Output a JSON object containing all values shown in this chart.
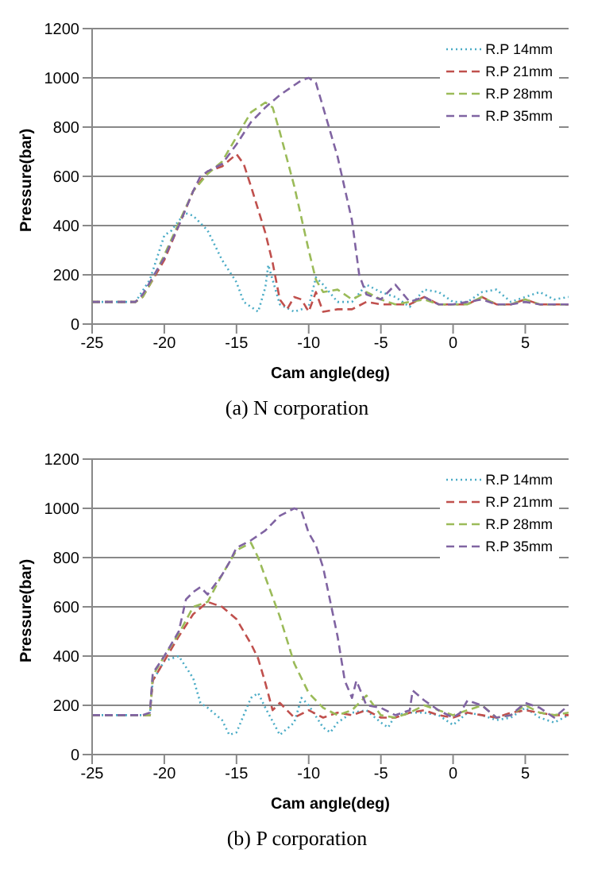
{
  "chart_data": [
    {
      "type": "line",
      "xlabel": "Cam angle(deg)",
      "ylabel": "Pressure(bar)",
      "xlim": [
        -25,
        8
      ],
      "xticks": [
        -25,
        -20,
        -15,
        -10,
        -5,
        0,
        5
      ],
      "ylim": [
        0,
        1200
      ],
      "yticks": [
        0,
        200,
        400,
        600,
        800,
        1000,
        1200
      ],
      "grid": "y",
      "legend": "top right",
      "marker": "none",
      "annotations": [
        "(a)  N corporation"
      ],
      "series": [
        {
          "name": "R.P 14mm",
          "color": "#4bacc6",
          "line_style": "dotted",
          "x": [
            -25,
            -22,
            -21,
            -20,
            -19.5,
            -19,
            -18.5,
            -18,
            -17,
            -16,
            -15,
            -14.5,
            -14,
            -13.5,
            -13,
            -12.8,
            -12.5,
            -12,
            -11,
            -10,
            -9.5,
            -9,
            -8,
            -7,
            -6,
            -5,
            -4,
            -3,
            -2,
            -1,
            0,
            1,
            2,
            3,
            4,
            5,
            6,
            7,
            8
          ],
          "values": [
            90,
            90,
            180,
            360,
            380,
            420,
            450,
            440,
            380,
            260,
            170,
            90,
            70,
            50,
            150,
            240,
            180,
            80,
            50,
            70,
            190,
            160,
            90,
            90,
            160,
            130,
            110,
            70,
            140,
            130,
            90,
            90,
            130,
            140,
            90,
            110,
            130,
            100,
            110
          ]
        },
        {
          "name": "R.P 21mm",
          "color": "#c0504d",
          "line_style": "dashed",
          "x": [
            -25,
            -22,
            -21.5,
            -21,
            -20,
            -19,
            -18,
            -17,
            -16,
            -15,
            -14.5,
            -14,
            -13,
            -12.5,
            -12,
            -11.5,
            -11,
            -10.5,
            -10,
            -9.5,
            -9,
            -8,
            -7,
            -6,
            -5,
            -4,
            -3,
            -2,
            -1,
            0,
            1,
            2,
            3,
            4,
            5,
            6,
            7,
            8
          ],
          "values": [
            90,
            90,
            110,
            160,
            260,
            400,
            540,
            620,
            640,
            690,
            650,
            560,
            370,
            250,
            100,
            60,
            110,
            100,
            50,
            130,
            50,
            60,
            60,
            90,
            80,
            80,
            80,
            110,
            80,
            80,
            80,
            110,
            80,
            80,
            100,
            80,
            80,
            80
          ]
        },
        {
          "name": "R.P 28mm",
          "color": "#9bbb59",
          "line_style": "dashed",
          "x": [
            -25,
            -22,
            -21.5,
            -21,
            -20,
            -19,
            -18,
            -17,
            -16,
            -15,
            -14,
            -13,
            -12.5,
            -12,
            -11,
            -10,
            -9.5,
            -9,
            -8,
            -7,
            -6,
            -5,
            -4,
            -3,
            -2,
            -1,
            0,
            1,
            2,
            3,
            4,
            5,
            6,
            7,
            8
          ],
          "values": [
            90,
            90,
            110,
            160,
            280,
            410,
            540,
            610,
            660,
            760,
            860,
            900,
            880,
            780,
            560,
            300,
            180,
            130,
            140,
            100,
            130,
            100,
            80,
            90,
            100,
            80,
            80,
            80,
            110,
            80,
            80,
            100,
            80,
            80,
            80
          ]
        },
        {
          "name": "R.P 35mm",
          "color": "#8064a2",
          "line_style": "dashed",
          "x": [
            -25,
            -22,
            -21.5,
            -21,
            -20,
            -19,
            -18,
            -17.5,
            -17,
            -16,
            -15,
            -14,
            -13,
            -12,
            -11,
            -10.5,
            -10,
            -9.5,
            -9,
            -8,
            -7,
            -6.5,
            -6,
            -5,
            -4,
            -3,
            -2,
            -1,
            0,
            1,
            2,
            3,
            4,
            5,
            6,
            7,
            8
          ],
          "values": [
            90,
            90,
            120,
            170,
            270,
            400,
            540,
            600,
            620,
            650,
            730,
            820,
            880,
            930,
            970,
            990,
            1000,
            980,
            880,
            680,
            420,
            200,
            120,
            100,
            160,
            90,
            110,
            80,
            80,
            90,
            100,
            80,
            80,
            90,
            80,
            80,
            80
          ]
        }
      ]
    },
    {
      "type": "line",
      "xlabel": "Cam angle(deg)",
      "ylabel": "Pressure(bar)",
      "xlim": [
        -25,
        8
      ],
      "xticks": [
        -25,
        -20,
        -15,
        -10,
        -5,
        0,
        5
      ],
      "ylim": [
        0,
        1200
      ],
      "yticks": [
        0,
        200,
        400,
        600,
        800,
        1000,
        1200
      ],
      "grid": "y",
      "legend": "top right",
      "marker": "none",
      "annotations": [
        "(b)  P corporation"
      ],
      "series": [
        {
          "name": "R.P 14mm",
          "color": "#4bacc6",
          "line_style": "dotted",
          "x": [
            -25,
            -21,
            -20.8,
            -20,
            -19,
            -18,
            -17.5,
            -17,
            -16,
            -15.5,
            -15,
            -14,
            -13.5,
            -13,
            -12,
            -11,
            -10.5,
            -10,
            -9,
            -8.5,
            -8,
            -7,
            -6,
            -5,
            -4.5,
            -4,
            -3,
            -2,
            -1,
            0,
            1,
            2,
            3,
            4,
            5,
            6,
            7,
            8
          ],
          "values": [
            160,
            160,
            300,
            380,
            400,
            310,
            210,
            190,
            140,
            80,
            90,
            230,
            250,
            190,
            80,
            130,
            230,
            200,
            110,
            90,
            130,
            170,
            180,
            130,
            110,
            160,
            170,
            170,
            160,
            120,
            170,
            160,
            140,
            150,
            190,
            150,
            130,
            160
          ]
        },
        {
          "name": "R.P 21mm",
          "color": "#c0504d",
          "line_style": "dashed",
          "x": [
            -25,
            -21,
            -20.8,
            -20,
            -19,
            -18,
            -17,
            -16,
            -15,
            -14,
            -13.5,
            -13,
            -12.5,
            -12,
            -11,
            -10,
            -9,
            -8,
            -7,
            -6,
            -5,
            -4,
            -3,
            -2,
            -1,
            0,
            1,
            2,
            3,
            4,
            5,
            6,
            7,
            8
          ],
          "values": [
            160,
            160,
            300,
            380,
            480,
            570,
            620,
            600,
            550,
            450,
            390,
            290,
            180,
            210,
            150,
            180,
            150,
            170,
            160,
            180,
            150,
            150,
            170,
            180,
            160,
            150,
            170,
            160,
            150,
            170,
            180,
            170,
            160,
            160
          ]
        },
        {
          "name": "R.P 28mm",
          "color": "#9bbb59",
          "line_style": "dashed",
          "x": [
            -25,
            -21,
            -20.8,
            -20,
            -19,
            -18,
            -17,
            -16,
            -15,
            -14,
            -13.5,
            -13,
            -12,
            -11,
            -10,
            -9,
            -8,
            -7,
            -6,
            -5,
            -4,
            -3,
            -2,
            -1,
            0,
            1,
            2,
            3,
            4,
            5,
            6,
            7,
            8
          ],
          "values": [
            160,
            160,
            320,
            400,
            490,
            600,
            620,
            730,
            830,
            860,
            800,
            720,
            560,
            370,
            250,
            190,
            160,
            180,
            240,
            160,
            150,
            170,
            200,
            180,
            160,
            180,
            200,
            150,
            160,
            200,
            170,
            160,
            170
          ]
        },
        {
          "name": "R.P 35mm",
          "color": "#8064a2",
          "line_style": "dashed",
          "x": [
            -25,
            -21.5,
            -21,
            -20.8,
            -20,
            -19,
            -18.5,
            -18,
            -17.5,
            -17,
            -16,
            -15.5,
            -15,
            -14,
            -13,
            -12.5,
            -12,
            -11,
            -10.5,
            -10,
            -9.5,
            -9,
            -8.5,
            -8,
            -7.5,
            -7,
            -6.7,
            -6,
            -5,
            -4,
            -3,
            -2.8,
            -2,
            -1,
            0,
            0.5,
            1,
            2,
            3,
            4,
            5,
            6,
            7,
            8
          ],
          "values": [
            160,
            160,
            170,
            330,
            400,
            500,
            630,
            660,
            680,
            650,
            730,
            780,
            840,
            870,
            910,
            940,
            970,
            1000,
            990,
            900,
            850,
            760,
            620,
            480,
            300,
            230,
            300,
            200,
            190,
            160,
            180,
            260,
            220,
            180,
            150,
            170,
            220,
            200,
            150,
            160,
            210,
            190,
            150,
            200
          ]
        }
      ]
    }
  ]
}
